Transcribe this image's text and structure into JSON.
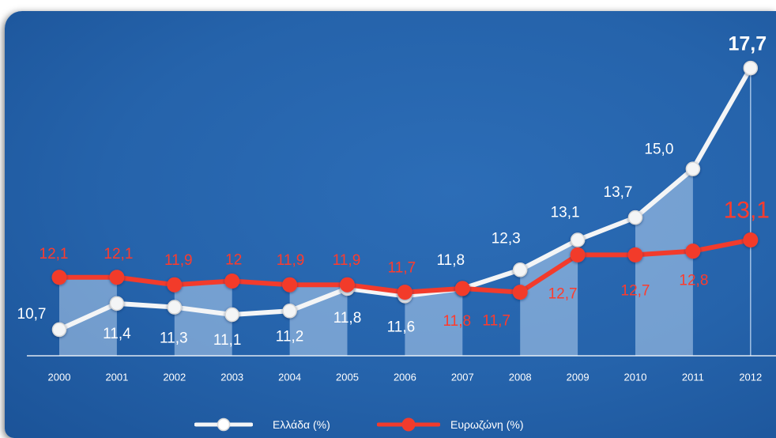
{
  "chart_data": {
    "type": "line",
    "categories": [
      "2000",
      "2001",
      "2002",
      "2003",
      "2004",
      "2005",
      "2006",
      "2007",
      "2008",
      "2009",
      "2010",
      "2011",
      "2012"
    ],
    "series": [
      {
        "name": "Ελλάδα (%)",
        "values": [
          10.7,
          11.4,
          11.3,
          11.1,
          11.2,
          11.8,
          11.6,
          11.8,
          12.3,
          13.1,
          13.7,
          15.0,
          17.7
        ],
        "labels": [
          "10,7",
          "11,4",
          "11,3",
          "11,1",
          "11,2",
          "11,8",
          "11,6",
          "11,8",
          "12,3",
          "13,1",
          "13,7",
          "15,0",
          "17,7"
        ],
        "color": "#f4f5f6"
      },
      {
        "name": "Ευρωζώνη (%)",
        "values": [
          12.1,
          12.1,
          11.9,
          12.0,
          11.9,
          11.9,
          11.7,
          11.8,
          11.7,
          12.7,
          12.7,
          12.8,
          13.1
        ],
        "labels": [
          "12,1",
          "12,1",
          "11,9",
          "12",
          "11,9",
          "11,9",
          "11,7",
          "11,8",
          "11,7",
          "12,7",
          "12,7",
          "12,8",
          "13,1"
        ],
        "color": "#f23b2c"
      }
    ],
    "ylim": [
      10,
      19.5
    ],
    "grid": false,
    "legend": "bottom"
  },
  "colors": {
    "background": "#2563ab",
    "band": "#c4dcf6",
    "greece_line": "#f4f5f6",
    "eurozone_line": "#f23b2c"
  }
}
